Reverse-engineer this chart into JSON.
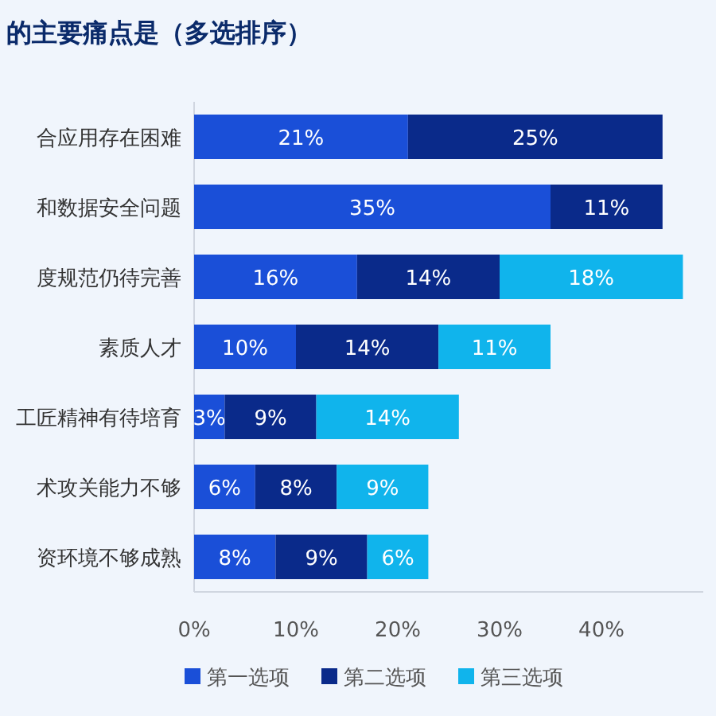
{
  "chart_data": {
    "type": "bar",
    "orientation": "horizontal",
    "stacked": true,
    "title": "的主要痛点是（多选排序）",
    "categories": [
      "合应用存在困难",
      "和数据安全问题",
      "度规范仍待完善",
      "素质人才",
      "工匠精神有待培育",
      "术攻关能力不够",
      "资环境不够成熟"
    ],
    "series": [
      {
        "name": "第一选项",
        "color": "#1a4fd8",
        "values": [
          21,
          35,
          16,
          10,
          3,
          6,
          8
        ],
        "value_labels": [
          "21%",
          "35%",
          "16%",
          "10%",
          "3%",
          "6%",
          "8%"
        ]
      },
      {
        "name": "第二选项",
        "color": "#0a2a8a",
        "values": [
          25,
          11,
          14,
          14,
          9,
          8,
          9
        ],
        "value_labels": [
          "25%",
          "11%",
          "14%",
          "14%",
          "9%",
          "8%",
          "9%"
        ]
      },
      {
        "name": "第三选项",
        "color": "#10b4ec",
        "values": [
          null,
          null,
          18,
          11,
          14,
          9,
          6
        ],
        "value_labels": [
          null,
          null,
          "18%",
          "11%",
          "14%",
          "9%",
          "6%"
        ]
      }
    ],
    "xlim": [
      0,
      50
    ],
    "xticks": [
      {
        "value": 0,
        "label": "0%"
      },
      {
        "value": 10,
        "label": "10%"
      },
      {
        "value": 20,
        "label": "20%"
      },
      {
        "value": 30,
        "label": "30%"
      },
      {
        "value": 40,
        "label": "40%"
      }
    ],
    "legend": "bottom",
    "grid": false
  }
}
